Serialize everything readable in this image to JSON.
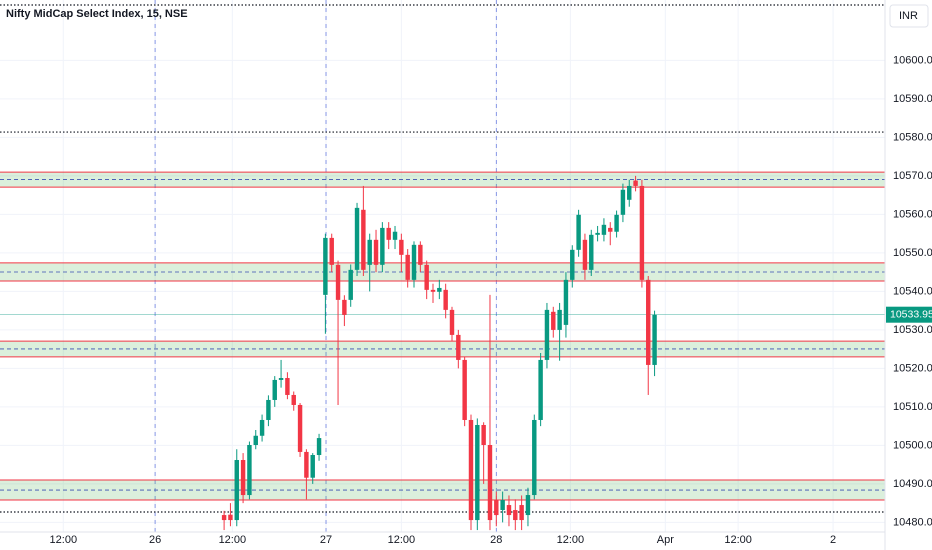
{
  "chart_data": {
    "type": "candlestick",
    "title": "Nifty MidCap Select Index, 15, NSE",
    "currency": "INR",
    "up_color": "#089981",
    "down_color": "#f23645",
    "x": [
      0,
      1,
      2,
      3,
      4,
      5,
      6,
      7,
      8,
      9,
      10,
      11,
      12,
      13,
      14,
      15,
      16,
      17,
      18,
      19,
      20,
      21,
      22,
      23,
      24,
      25,
      26,
      27,
      28,
      29,
      30,
      31,
      32,
      33,
      34,
      35,
      36,
      37,
      38,
      39,
      40,
      41,
      42,
      43,
      44,
      45,
      46,
      47,
      48,
      49,
      50,
      51,
      52,
      53,
      54,
      55,
      56,
      57,
      58,
      59,
      60,
      61,
      62,
      63,
      64,
      65,
      66,
      67,
      68
    ],
    "open": [
      10481.9,
      10482,
      10480.6,
      10496.2,
      10487.1,
      10500.1,
      10502.5,
      10506.6,
      10511.8,
      10517,
      10517.5,
      10513.1,
      10510.5,
      10498.3,
      10491.6,
      10497.5,
      10539.1,
      10553.9,
      10546.9,
      10537.8,
      10537.8,
      10545.6,
      10561.2,
      10546.9,
      10553.4,
      10546.9,
      10556.5,
      10553.4,
      10553.4,
      10549.5,
      10543,
      10552.1,
      10546.9,
      10540.4,
      10539.9,
      10540.4,
      10535.2,
      10528.7,
      10522.2,
      10506.6,
      10480.6,
      10505.3,
      10500.1,
      10485.8,
      10483.2,
      10484.5,
      10483.2,
      10484.5,
      10481.9,
      10487.1,
      10506.6,
      10522.2,
      10534.7,
      10530,
      10531.3,
      10543,
      10550.8,
      10553.4,
      10545.6,
      10554.7,
      10554.7,
      10556.5,
      10555.5,
      10559.9,
      10563.8,
      10568.8,
      10567.4,
      10543,
      10520.9
    ],
    "high": [
      10483,
      10485,
      10499,
      10498,
      10501,
      10504,
      10508,
      10513,
      10518,
      10522.2,
      10519,
      10514,
      10511,
      10499,
      10498,
      10503,
      10555,
      10555,
      10548,
      10539,
      10547,
      10563,
      10567.4,
      10555,
      10556,
      10558,
      10558,
      10557,
      10555,
      10551,
      10553,
      10553,
      10548,
      10542,
      10543,
      10542,
      10536,
      10530,
      10523,
      10508,
      10507,
      10506,
      10539.1,
      10488,
      10488,
      10487,
      10486,
      10487,
      10489,
      10508,
      10524,
      10537,
      10536,
      10537,
      10545,
      10552,
      10561.2,
      10555,
      10556,
      10557,
      10559,
      10558,
      10561,
      10568,
      10569,
      10570,
      10569,
      10544,
      10535
    ],
    "low": [
      10478,
      10479,
      10479,
      10485,
      10486,
      10499,
      10501,
      10505,
      10510,
      10515,
      10512,
      10509,
      10497,
      10486,
      10490,
      10496,
      10529,
      10545,
      10510.5,
      10531,
      10536,
      10544,
      10544,
      10540,
      10545,
      10545,
      10551,
      10551,
      10545,
      10541,
      10541,
      10545,
      10538,
      10537,
      10538,
      10533,
      10527,
      10520,
      10505,
      10478,
      10478,
      10490,
      10478,
      10479,
      10480,
      10479,
      10478,
      10478,
      10479,
      10486,
      10505,
      10520,
      10528,
      10522,
      10528,
      10541,
      10549,
      10543,
      10544,
      10553,
      10553,
      10552,
      10554,
      10558,
      10562,
      10566,
      10541,
      10513.1,
      10518
    ],
    "close": [
      10480.6,
      10480.6,
      10496.2,
      10487.1,
      10500.1,
      10502.5,
      10506.6,
      10511.8,
      10517,
      10517.5,
      10513.1,
      10510.5,
      10498.3,
      10491.6,
      10497.5,
      10501.9,
      10553.9,
      10546.9,
      10537.8,
      10533.9,
      10545.6,
      10561.7,
      10545.6,
      10553.4,
      10546.9,
      10556.5,
      10553.4,
      10555.5,
      10549.5,
      10543,
      10552.1,
      10546.9,
      10540.4,
      10539.9,
      10540.9,
      10535.2,
      10528.7,
      10522.2,
      10506.6,
      10480.6,
      10505.3,
      10500.1,
      10480.6,
      10481.9,
      10485.8,
      10481.9,
      10480.6,
      10480.6,
      10487.1,
      10506.6,
      10522.2,
      10535.2,
      10530,
      10535.2,
      10543,
      10550.8,
      10559.9,
      10545.6,
      10554.7,
      10555.2,
      10557.3,
      10555.5,
      10559.9,
      10566.4,
      10567.4,
      10567.4,
      10543,
      10520.9,
      10533.95
    ],
    "xlim": [
      -35.4,
      104.4
    ],
    "xticks": [
      {
        "value": -25.4,
        "label": "12:00"
      },
      {
        "value": -10.9,
        "label": "26"
      },
      {
        "value": 1.3,
        "label": "12:00"
      },
      {
        "value": 16.1,
        "label": "27"
      },
      {
        "value": 28,
        "label": "12:00"
      },
      {
        "value": 43,
        "label": "28"
      },
      {
        "value": 54.7,
        "label": "12:00"
      },
      {
        "value": 69.7,
        "label": "Apr"
      },
      {
        "value": 81.2,
        "label": "12:00"
      },
      {
        "value": 96.2,
        "label": "2"
      }
    ],
    "day_separators": [
      -10.9,
      16.1,
      43
    ],
    "ylim": [
      10477.5,
      10615.7
    ],
    "yticks": [
      {
        "value": 10480,
        "label": "10480.00"
      },
      {
        "value": 10490,
        "label": "10490.00"
      },
      {
        "value": 10500,
        "label": "10500.00"
      },
      {
        "value": 10510,
        "label": "10510.00"
      },
      {
        "value": 10520,
        "label": "10520.00"
      },
      {
        "value": 10530,
        "label": "10530.00"
      },
      {
        "value": 10540,
        "label": "10540.00"
      },
      {
        "value": 10550,
        "label": "10550.00"
      },
      {
        "value": 10560,
        "label": "10560.00"
      },
      {
        "value": 10570,
        "label": "10570.00"
      },
      {
        "value": 10580,
        "label": "10580.00"
      },
      {
        "value": 10590,
        "label": "10590.00"
      },
      {
        "value": 10600,
        "label": "10600.00"
      }
    ],
    "zones": [
      [
        10567.1,
        10571
      ],
      [
        10542.7,
        10547.4
      ],
      [
        10523,
        10527.1
      ],
      [
        10485.8,
        10491
      ]
    ],
    "dotted_lines": [
      10614.4,
      10581.4,
      10482.7
    ],
    "grid": true
  }
}
